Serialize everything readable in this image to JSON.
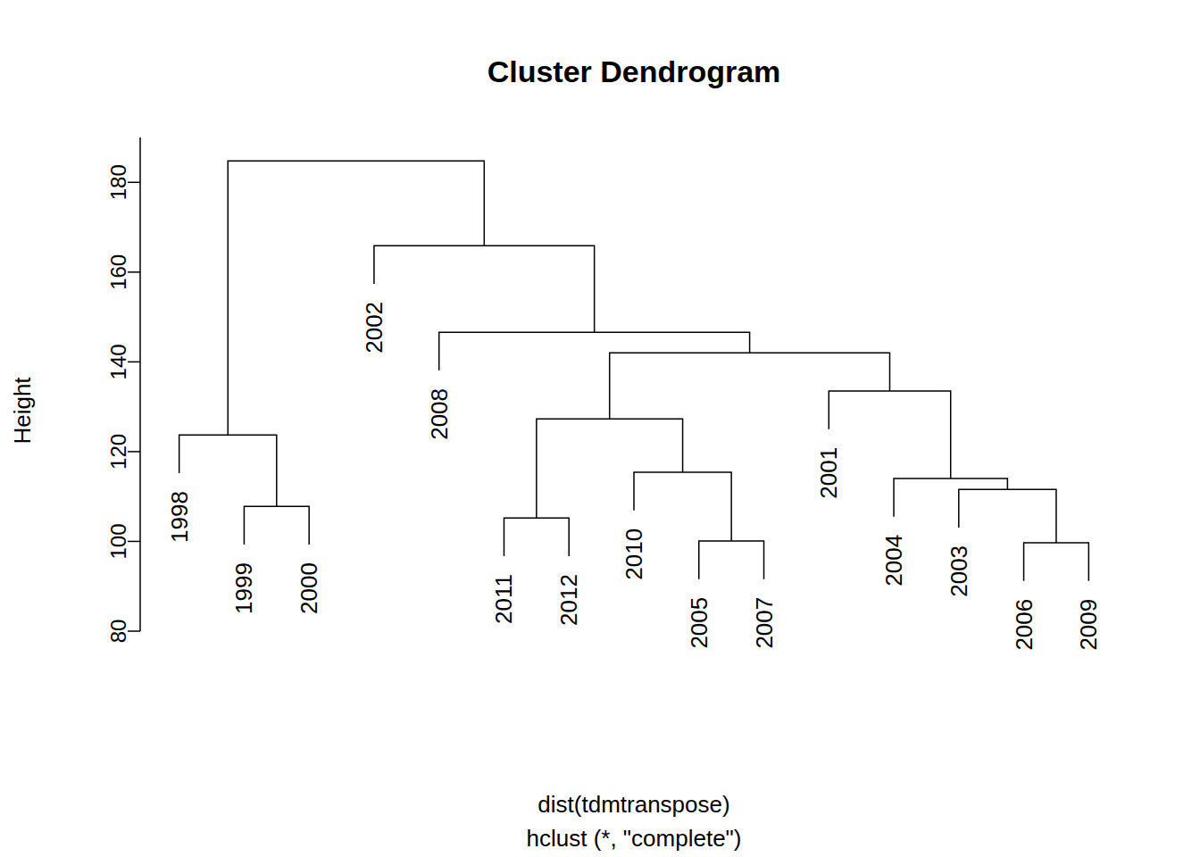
{
  "chart_data": {
    "type": "dendrogram",
    "title": "Cluster Dendrogram",
    "ylabel": "Height",
    "xlabel": "dist(tdmtranspose)",
    "subtitle": "hclust (*, \"complete\")",
    "ylim": [
      80,
      190
    ],
    "yticks": [
      80,
      100,
      120,
      140,
      160,
      180
    ],
    "tree": {
      "height": 184.8,
      "children": [
        {
          "height": 123.7,
          "children": [
            "1998",
            {
              "height": 107.8,
              "children": [
                "1999",
                "2000"
              ]
            }
          ]
        },
        {
          "height": 165.9,
          "children": [
            "2002",
            {
              "height": 146.6,
              "children": [
                "2008",
                {
                  "height": 142.0,
                  "children": [
                    {
                      "height": 127.3,
                      "children": [
                        {
                          "height": 105.2,
                          "children": [
                            "2011",
                            "2012"
                          ]
                        },
                        {
                          "height": 115.4,
                          "children": [
                            "2010",
                            {
                              "height": 100.1,
                              "children": [
                                "2005",
                                "2007"
                              ]
                            }
                          ]
                        }
                      ]
                    },
                    {
                      "height": 133.5,
                      "children": [
                        "2001",
                        {
                          "height": 114.0,
                          "children": [
                            "2004",
                            {
                              "height": 111.6,
                              "children": [
                                "2003",
                                {
                                  "height": 99.7,
                                  "children": [
                                    "2006",
                                    "2009"
                                  ]
                                }
                              ]
                            }
                          ]
                        }
                      ]
                    }
                  ]
                }
              ]
            }
          ]
        }
      ]
    }
  }
}
